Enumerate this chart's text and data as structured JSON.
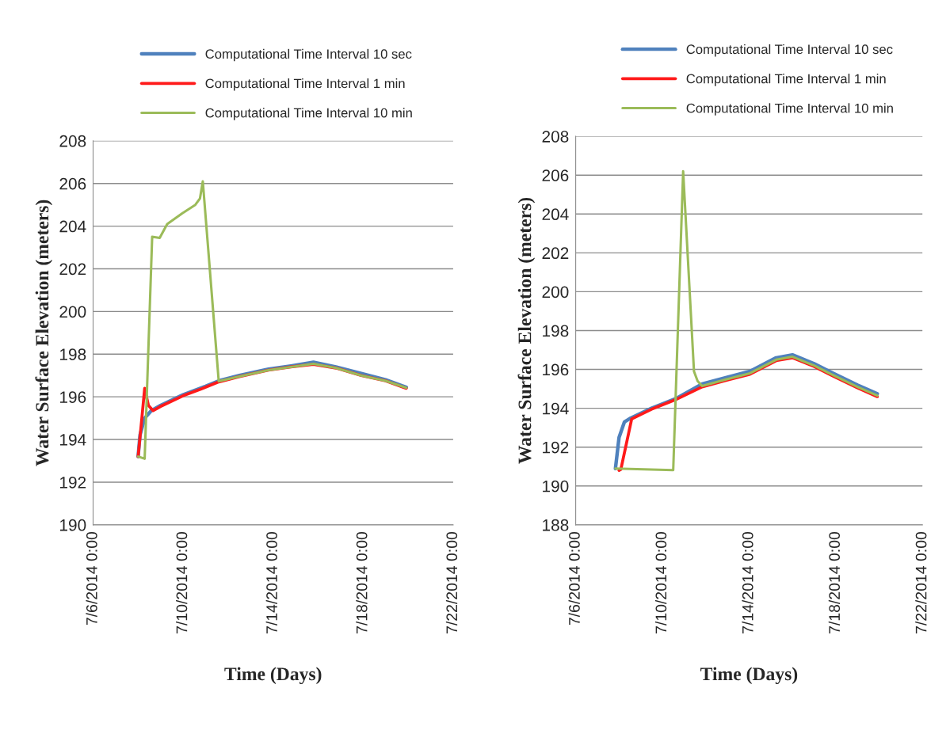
{
  "chart_data": [
    {
      "type": "line",
      "xlabel": "Time (Days)",
      "ylabel": "Water Surface Elevation (meters)",
      "legend": "top",
      "grid": "y",
      "xlim": [
        "2014-07-06",
        "2014-07-22"
      ],
      "xticks": [
        {
          "value": "2014-07-06",
          "label": "7/6/2014 0:00"
        },
        {
          "value": "2014-07-10",
          "label": "7/10/2014 0:00"
        },
        {
          "value": "2014-07-14",
          "label": "7/14/2014 0:00"
        },
        {
          "value": "2014-07-18",
          "label": "7/18/2014 0:00"
        },
        {
          "value": "2014-07-22",
          "label": "7/22/2014 0:00"
        }
      ],
      "ylim": [
        190,
        208
      ],
      "yticks": [
        190,
        192,
        194,
        196,
        198,
        200,
        202,
        204,
        206,
        208
      ],
      "series": [
        {
          "name": "Computational Time Interval 10 sec",
          "color": "#4f81bd",
          "x": [
            "2014-07-08T00:00",
            "2014-07-08T02:00",
            "2014-07-08T07:00",
            "2014-07-08T14:00",
            "2014-07-09T00:00",
            "2014-07-10T00:00",
            "2014-07-11T00:00",
            "2014-07-11T14:00",
            "2014-07-12T12:00",
            "2014-07-13T19:00",
            "2014-07-14T19:00",
            "2014-07-15T19:00",
            "2014-07-16T19:00",
            "2014-07-17T22:00",
            "2014-07-19T00:00",
            "2014-07-19T22:00"
          ],
          "values": [
            193.2,
            194.2,
            195.0,
            195.35,
            195.6,
            196.1,
            196.5,
            196.75,
            197.0,
            197.3,
            197.45,
            197.62,
            197.4,
            197.1,
            196.8,
            196.45
          ]
        },
        {
          "name": "Computational Time Interval 1 min",
          "color": "#ff1a1a",
          "x": [
            "2014-07-08T00:00",
            "2014-07-08T04:00",
            "2014-07-08T07:00",
            "2014-07-08T11:00",
            "2014-07-08T16:00",
            "2014-07-09T00:00",
            "2014-07-10T00:00",
            "2014-07-11T00:00",
            "2014-07-11T14:00",
            "2014-07-12T12:00",
            "2014-07-13T19:00",
            "2014-07-14T19:00",
            "2014-07-15T19:00",
            "2014-07-16T19:00",
            "2014-07-17T22:00",
            "2014-07-19T00:00",
            "2014-07-19T22:00"
          ],
          "values": [
            193.2,
            195.0,
            196.4,
            195.6,
            195.35,
            195.55,
            196.05,
            196.45,
            196.7,
            196.95,
            197.25,
            197.4,
            197.52,
            197.35,
            197.0,
            196.75,
            196.4
          ]
        },
        {
          "name": "Computational Time Interval 10 min",
          "color": "#9bbb59",
          "x": [
            "2014-07-08T00:00",
            "2014-07-08T07:00",
            "2014-07-08T15:00",
            "2014-07-08T23:00",
            "2014-07-09T07:00",
            "2014-07-09T23:00",
            "2014-07-10T13:00",
            "2014-07-10T18:00",
            "2014-07-10T21:00",
            "2014-07-11T14:00",
            "2014-07-12T12:00",
            "2014-07-13T19:00",
            "2014-07-14T19:00",
            "2014-07-15T19:00",
            "2014-07-16T19:00",
            "2014-07-17T22:00",
            "2014-07-19T00:00",
            "2014-07-19T22:00"
          ],
          "values": [
            193.2,
            193.1,
            203.5,
            203.45,
            204.1,
            204.6,
            205.0,
            205.3,
            206.1,
            196.73,
            196.95,
            197.25,
            197.4,
            197.55,
            197.35,
            197.0,
            196.75,
            196.42
          ]
        }
      ]
    },
    {
      "type": "line",
      "xlabel": "Time (Days)",
      "ylabel": "Water Surface Elevation (meters)",
      "legend": "top",
      "grid": "y",
      "xlim": [
        "2014-07-06",
        "2014-07-22"
      ],
      "xticks": [
        {
          "value": "2014-07-06",
          "label": "7/6/2014 0:00"
        },
        {
          "value": "2014-07-10",
          "label": "7/10/2014 0:00"
        },
        {
          "value": "2014-07-14",
          "label": "7/14/2014 0:00"
        },
        {
          "value": "2014-07-18",
          "label": "7/18/2014 0:00"
        },
        {
          "value": "2014-07-22",
          "label": "7/22/2014 0:00"
        }
      ],
      "ylim": [
        188,
        208
      ],
      "yticks": [
        188,
        190,
        192,
        194,
        196,
        198,
        200,
        202,
        204,
        206,
        208
      ],
      "series": [
        {
          "name": "Computational Time Interval 10 sec",
          "color": "#4f81bd",
          "x": [
            "2014-07-07T20:00",
            "2014-07-08T00:00",
            "2014-07-08T06:00",
            "2014-07-08T13:00",
            "2014-07-09T12:00",
            "2014-07-10T15:00",
            "2014-07-11T20:00",
            "2014-07-13T00:00",
            "2014-07-14T01:00",
            "2014-07-15T06:00",
            "2014-07-16T00:00",
            "2014-07-17T00:00",
            "2014-07-17T19:00",
            "2014-07-19T00:00",
            "2014-07-19T22:00"
          ],
          "values": [
            190.9,
            192.5,
            193.3,
            193.5,
            194.0,
            194.5,
            195.25,
            195.6,
            195.9,
            196.6,
            196.75,
            196.3,
            195.85,
            195.2,
            194.75
          ]
        },
        {
          "name": "Computational Time Interval 1 min",
          "color": "#ff1a1a",
          "x": [
            "2014-07-08T00:00",
            "2014-07-08T02:00",
            "2014-07-08T14:00",
            "2014-07-09T12:00",
            "2014-07-10T15:00",
            "2014-07-11T20:00",
            "2014-07-13T00:00",
            "2014-07-14T01:00",
            "2014-07-15T06:00",
            "2014-07-16T00:00",
            "2014-07-17T00:00",
            "2014-07-17T19:00",
            "2014-07-19T00:00",
            "2014-07-19T22:00"
          ],
          "values": [
            190.8,
            190.85,
            193.45,
            193.95,
            194.45,
            195.1,
            195.45,
            195.75,
            196.45,
            196.6,
            196.15,
            195.7,
            195.05,
            194.6
          ]
        },
        {
          "name": "Computational Time Interval 10 min",
          "color": "#9bbb59",
          "x": [
            "2014-07-07T20:00",
            "2014-07-10T12:00",
            "2014-07-10T23:00",
            "2014-07-11T11:00",
            "2014-07-11T15:00",
            "2014-07-11T20:00",
            "2014-07-13T00:00",
            "2014-07-14T01:00",
            "2014-07-15T06:00",
            "2014-07-16T00:00",
            "2014-07-17T00:00",
            "2014-07-17T19:00",
            "2014-07-19T00:00",
            "2014-07-19T22:00"
          ],
          "values": [
            190.9,
            190.82,
            206.2,
            195.9,
            195.4,
            195.15,
            195.5,
            195.8,
            196.5,
            196.65,
            196.2,
            195.75,
            195.1,
            194.65
          ]
        }
      ]
    }
  ]
}
